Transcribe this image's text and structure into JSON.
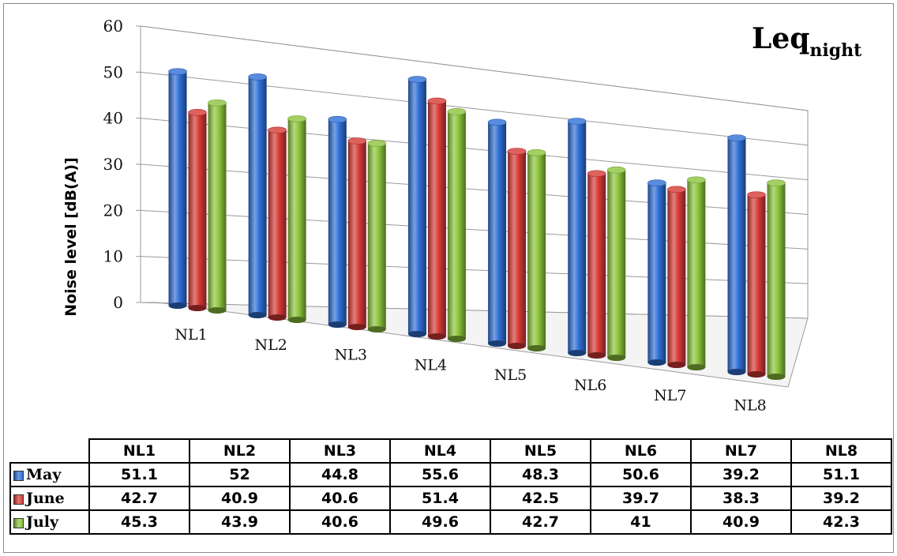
{
  "chart_data": {
    "type": "bar",
    "title": "Leq",
    "title_subscript": "night",
    "ylabel": "Noise level [dB(A)]",
    "xlabel": "",
    "ylim": [
      0,
      60
    ],
    "yticks": [
      "0",
      "10",
      "20",
      "30",
      "40",
      "50",
      "60"
    ],
    "grid": true,
    "categories": [
      "NL1",
      "NL2",
      "NL3",
      "NL4",
      "NL5",
      "NL6",
      "NL7",
      "NL8"
    ],
    "series": [
      {
        "name": "May",
        "color": "#2f6fd6",
        "values": [
          51.1,
          52,
          44.8,
          55.6,
          48.3,
          50.6,
          39.2,
          51.1
        ]
      },
      {
        "name": "June",
        "color": "#d63a36",
        "values": [
          42.7,
          40.9,
          40.6,
          51.4,
          42.5,
          39.7,
          38.3,
          39.2
        ]
      },
      {
        "name": "July",
        "color": "#8cc43c",
        "values": [
          45.3,
          43.9,
          40.6,
          49.6,
          42.7,
          41,
          40.9,
          42.3
        ]
      }
    ],
    "data_table": {
      "headers": [
        "NL1",
        "NL2",
        "NL3",
        "NL4",
        "NL5",
        "NL6",
        "NL7",
        "NL8"
      ],
      "rows": [
        {
          "label": "May",
          "cells": [
            "51.1",
            "52",
            "44.8",
            "55.6",
            "48.3",
            "50.6",
            "39.2",
            "51.1"
          ]
        },
        {
          "label": "June",
          "cells": [
            "42.7",
            "40.9",
            "40.6",
            "51.4",
            "42.5",
            "39.7",
            "38.3",
            "39.2"
          ]
        },
        {
          "label": "July",
          "cells": [
            "45.3",
            "43.9",
            "40.6",
            "49.6",
            "42.7",
            "41",
            "40.9",
            "42.3"
          ]
        }
      ]
    }
  }
}
